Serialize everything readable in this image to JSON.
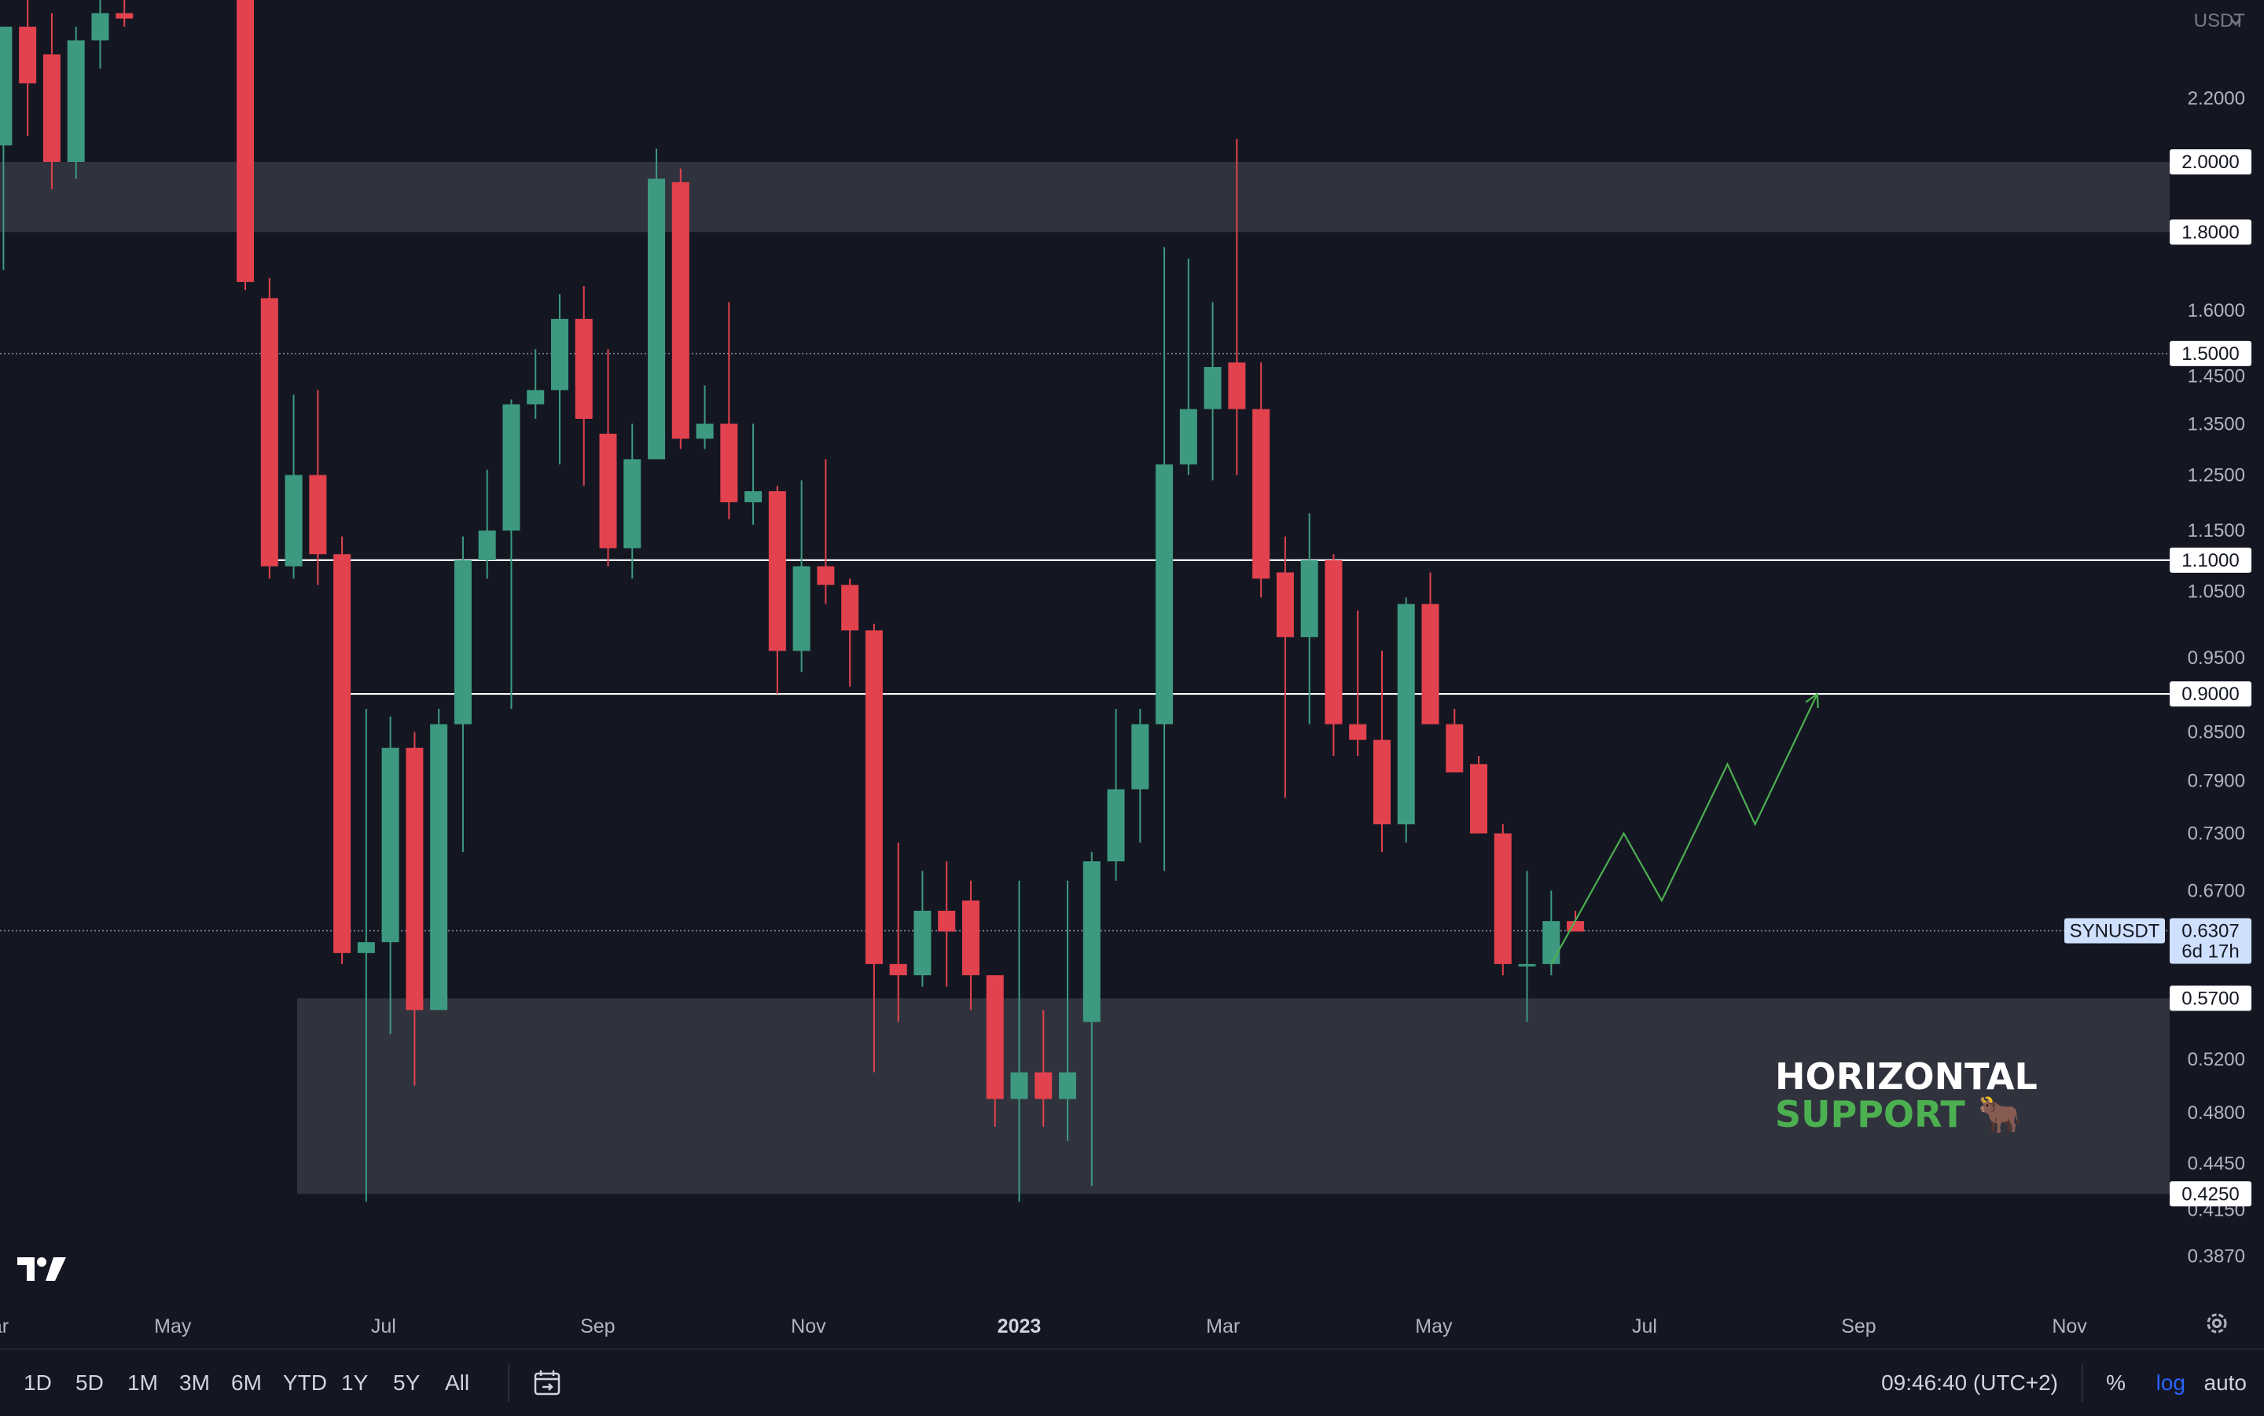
{
  "quote_currency": "USDT",
  "symbol": "SYNUSDT",
  "last_price": "0.6307",
  "countdown": "6d 17h",
  "annotation": {
    "line1": "HORIZONTAL",
    "line2": "SUPPORT",
    "emoji": "🐂"
  },
  "time_ranges": [
    "1D",
    "5D",
    "1M",
    "3M",
    "6M",
    "YTD",
    "1Y",
    "5Y",
    "All"
  ],
  "clock": "09:46:40 (UTC+2)",
  "scale_buttons": {
    "percent": "%",
    "log": "log",
    "auto": "auto"
  },
  "colors": {
    "up": "#3d9a81",
    "down": "#e2424d",
    "background": "#141722",
    "zone": "#333540",
    "projection": "#4caf50"
  },
  "chart_data": {
    "type": "candlestick",
    "y_scale": "log",
    "ylim": [
      0.36,
      2.55
    ],
    "y_ticks": [
      "2.2000",
      "1.6000",
      "1.4500",
      "1.3500",
      "1.2500",
      "1.1500",
      "1.0500",
      "0.9500",
      "0.8500",
      "0.7900",
      "0.7300",
      "0.6700",
      "0.5200",
      "0.4800",
      "0.4450",
      "0.4150",
      "0.3870"
    ],
    "x_labels": [
      "ar",
      "May",
      "Jul",
      "Sep",
      "Nov",
      "2023",
      "Mar",
      "May",
      "Jul",
      "Sep",
      "Nov"
    ],
    "x_range": [
      "2022-03-12",
      "2023-11-30"
    ],
    "x_label_dates": [
      "2022-03-12",
      "2022-05-01",
      "2022-07-01",
      "2022-09-01",
      "2022-11-01",
      "2023-01-01",
      "2023-03-01",
      "2023-05-01",
      "2023-07-01",
      "2023-09-01",
      "2023-11-01"
    ],
    "candles": [
      {
        "date": "2022-03-13",
        "o": 2.05,
        "h": 2.45,
        "l": 1.7,
        "c": 2.45
      },
      {
        "date": "2022-03-20",
        "o": 2.45,
        "h": 2.55,
        "l": 2.08,
        "c": 2.25
      },
      {
        "date": "2022-03-27",
        "o": 2.35,
        "h": 2.5,
        "l": 1.92,
        "c": 2.0
      },
      {
        "date": "2022-04-03",
        "o": 2.0,
        "h": 2.45,
        "l": 1.95,
        "c": 2.4
      },
      {
        "date": "2022-04-10",
        "o": 2.4,
        "h": 2.55,
        "l": 2.3,
        "c": 2.5
      },
      {
        "date": "2022-04-17",
        "o": 2.5,
        "h": 2.55,
        "l": 2.45,
        "c": 2.48
      },
      {
        "date": "2022-05-22",
        "o": 2.55,
        "h": 2.55,
        "l": 1.65,
        "c": 1.67
      },
      {
        "date": "2022-05-29",
        "o": 1.63,
        "h": 1.68,
        "l": 1.07,
        "c": 1.09
      },
      {
        "date": "2022-06-05",
        "o": 1.09,
        "h": 1.41,
        "l": 1.07,
        "c": 1.25
      },
      {
        "date": "2022-06-12",
        "o": 1.25,
        "h": 1.42,
        "l": 1.06,
        "c": 1.11
      },
      {
        "date": "2022-06-19",
        "o": 1.11,
        "h": 1.14,
        "l": 0.6,
        "c": 0.61
      },
      {
        "date": "2022-06-26",
        "o": 0.61,
        "h": 0.88,
        "l": 0.42,
        "c": 0.62
      },
      {
        "date": "2022-07-03",
        "o": 0.62,
        "h": 0.87,
        "l": 0.54,
        "c": 0.83
      },
      {
        "date": "2022-07-10",
        "o": 0.83,
        "h": 0.85,
        "l": 0.5,
        "c": 0.56
      },
      {
        "date": "2022-07-17",
        "o": 0.56,
        "h": 0.88,
        "l": 0.56,
        "c": 0.86
      },
      {
        "date": "2022-07-24",
        "o": 0.86,
        "h": 1.14,
        "l": 0.71,
        "c": 1.1
      },
      {
        "date": "2022-07-31",
        "o": 1.1,
        "h": 1.26,
        "l": 1.07,
        "c": 1.15
      },
      {
        "date": "2022-08-07",
        "o": 1.15,
        "h": 1.4,
        "l": 0.88,
        "c": 1.39
      },
      {
        "date": "2022-08-14",
        "o": 1.39,
        "h": 1.51,
        "l": 1.36,
        "c": 1.42
      },
      {
        "date": "2022-08-21",
        "o": 1.42,
        "h": 1.64,
        "l": 1.27,
        "c": 1.58
      },
      {
        "date": "2022-08-28",
        "o": 1.58,
        "h": 1.66,
        "l": 1.23,
        "c": 1.36
      },
      {
        "date": "2022-09-04",
        "o": 1.33,
        "h": 1.51,
        "l": 1.09,
        "c": 1.12
      },
      {
        "date": "2022-09-11",
        "o": 1.12,
        "h": 1.35,
        "l": 1.07,
        "c": 1.28
      },
      {
        "date": "2022-09-18",
        "o": 1.28,
        "h": 2.04,
        "l": 1.28,
        "c": 1.95
      },
      {
        "date": "2022-09-25",
        "o": 1.94,
        "h": 1.98,
        "l": 1.3,
        "c": 1.32
      },
      {
        "date": "2022-10-02",
        "o": 1.32,
        "h": 1.43,
        "l": 1.3,
        "c": 1.35
      },
      {
        "date": "2022-10-09",
        "o": 1.35,
        "h": 1.62,
        "l": 1.17,
        "c": 1.2
      },
      {
        "date": "2022-10-16",
        "o": 1.2,
        "h": 1.35,
        "l": 1.16,
        "c": 1.22
      },
      {
        "date": "2022-10-23",
        "o": 1.22,
        "h": 1.23,
        "l": 0.9,
        "c": 0.96
      },
      {
        "date": "2022-10-30",
        "o": 0.96,
        "h": 1.24,
        "l": 0.93,
        "c": 1.09
      },
      {
        "date": "2022-11-06",
        "o": 1.09,
        "h": 1.28,
        "l": 1.03,
        "c": 1.06
      },
      {
        "date": "2022-11-13",
        "o": 1.06,
        "h": 1.07,
        "l": 0.91,
        "c": 0.99
      },
      {
        "date": "2022-11-20",
        "o": 0.99,
        "h": 1.0,
        "l": 0.51,
        "c": 0.6
      },
      {
        "date": "2022-11-27",
        "o": 0.6,
        "h": 0.72,
        "l": 0.55,
        "c": 0.59
      },
      {
        "date": "2022-12-04",
        "o": 0.59,
        "h": 0.69,
        "l": 0.58,
        "c": 0.65
      },
      {
        "date": "2022-12-11",
        "o": 0.65,
        "h": 0.7,
        "l": 0.58,
        "c": 0.63
      },
      {
        "date": "2022-12-18",
        "o": 0.66,
        "h": 0.68,
        "l": 0.56,
        "c": 0.59
      },
      {
        "date": "2022-12-25",
        "o": 0.59,
        "h": 0.59,
        "l": 0.47,
        "c": 0.49
      },
      {
        "date": "2023-01-01",
        "o": 0.49,
        "h": 0.68,
        "l": 0.42,
        "c": 0.51
      },
      {
        "date": "2023-01-08",
        "o": 0.51,
        "h": 0.56,
        "l": 0.47,
        "c": 0.49
      },
      {
        "date": "2023-01-15",
        "o": 0.49,
        "h": 0.68,
        "l": 0.46,
        "c": 0.51
      },
      {
        "date": "2023-01-22",
        "o": 0.55,
        "h": 0.71,
        "l": 0.43,
        "c": 0.7
      },
      {
        "date": "2023-01-29",
        "o": 0.7,
        "h": 0.88,
        "l": 0.68,
        "c": 0.78
      },
      {
        "date": "2023-02-05",
        "o": 0.78,
        "h": 0.88,
        "l": 0.72,
        "c": 0.86
      },
      {
        "date": "2023-02-12",
        "o": 0.86,
        "h": 1.76,
        "l": 0.69,
        "c": 1.27
      },
      {
        "date": "2023-02-19",
        "o": 1.27,
        "h": 1.73,
        "l": 1.25,
        "c": 1.38
      },
      {
        "date": "2023-02-26",
        "o": 1.38,
        "h": 1.62,
        "l": 1.24,
        "c": 1.47
      },
      {
        "date": "2023-03-05",
        "o": 1.48,
        "h": 2.07,
        "l": 1.25,
        "c": 1.38
      },
      {
        "date": "2023-03-12",
        "o": 1.38,
        "h": 1.48,
        "l": 1.04,
        "c": 1.07
      },
      {
        "date": "2023-03-19",
        "o": 1.08,
        "h": 1.14,
        "l": 0.77,
        "c": 0.98
      },
      {
        "date": "2023-03-26",
        "o": 0.98,
        "h": 1.18,
        "l": 0.86,
        "c": 1.1
      },
      {
        "date": "2023-04-02",
        "o": 1.1,
        "h": 1.11,
        "l": 0.82,
        "c": 0.86
      },
      {
        "date": "2023-04-09",
        "o": 0.86,
        "h": 1.02,
        "l": 0.82,
        "c": 0.84
      },
      {
        "date": "2023-04-16",
        "o": 0.84,
        "h": 0.96,
        "l": 0.71,
        "c": 0.74
      },
      {
        "date": "2023-04-23",
        "o": 0.74,
        "h": 1.04,
        "l": 0.72,
        "c": 1.03
      },
      {
        "date": "2023-04-30",
        "o": 1.03,
        "h": 1.08,
        "l": 0.86,
        "c": 0.86
      },
      {
        "date": "2023-05-07",
        "o": 0.86,
        "h": 0.88,
        "l": 0.8,
        "c": 0.8
      },
      {
        "date": "2023-05-14",
        "o": 0.81,
        "h": 0.82,
        "l": 0.73,
        "c": 0.73
      },
      {
        "date": "2023-05-21",
        "o": 0.73,
        "h": 0.74,
        "l": 0.59,
        "c": 0.6
      },
      {
        "date": "2023-05-28",
        "o": 0.6,
        "h": 0.69,
        "l": 0.55,
        "c": 0.6
      },
      {
        "date": "2023-06-04",
        "o": 0.6,
        "h": 0.67,
        "l": 0.59,
        "c": 0.64
      },
      {
        "date": "2023-06-11",
        "o": 0.64,
        "h": 0.65,
        "l": 0.63,
        "c": 0.63
      }
    ],
    "zones": [
      {
        "from": 1.8,
        "to": 2.0,
        "start": "2022-03-12",
        "end": "2023-11-30"
      },
      {
        "from": 0.425,
        "to": 0.57,
        "start": "2022-06-06",
        "end": "2023-11-30"
      }
    ],
    "horizontal_lines": [
      {
        "value": 1.1,
        "start": "2022-05-29",
        "end": "2023-11-30"
      },
      {
        "value": 0.9,
        "start": "2022-06-20",
        "end": "2023-11-30"
      }
    ],
    "dotted_lines": [
      {
        "value": 1.5
      },
      {
        "value": 0.6307
      }
    ],
    "price_labels": [
      "2.0000",
      "1.8000",
      "1.5000",
      "1.1000",
      "0.9000",
      "0.5700",
      "0.4250"
    ],
    "projection_path": [
      {
        "date": "2023-06-04",
        "y": 0.6
      },
      {
        "date": "2023-06-25",
        "y": 0.73
      },
      {
        "date": "2023-07-06",
        "y": 0.66
      },
      {
        "date": "2023-07-25",
        "y": 0.81
      },
      {
        "date": "2023-08-02",
        "y": 0.74
      },
      {
        "date": "2023-08-20",
        "y": 0.9
      }
    ]
  }
}
